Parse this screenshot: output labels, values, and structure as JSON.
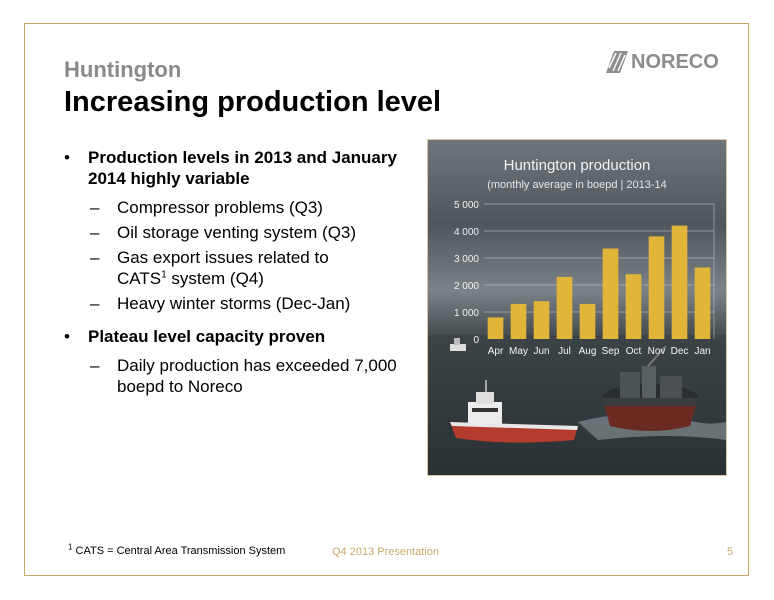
{
  "slide": {
    "subtitle": "Huntington",
    "title": "Increasing production level",
    "logo_text": "NORECO",
    "bullets": [
      {
        "text": "Production levels in 2013 and January 2014 highly variable",
        "subs": [
          "Compressor problems (Q3)",
          "Oil storage venting system (Q3)",
          "Gas export issues related to",
          "Heavy winter storms (Dec-Jan)"
        ],
        "sub_cats_prefix": "CATS",
        "sub_cats_sup": "1",
        "sub_cats_suffix": " system (Q4)"
      },
      {
        "text": "Plateau level capacity proven",
        "subs": [
          "Daily production has exceeded 7,000 boepd to Noreco"
        ]
      }
    ],
    "footnote_sup": "1",
    "footnote": "CATS = Central Area Transmission System",
    "footer_center": "Q4 2013 Presentation",
    "page_number": "5"
  },
  "chart_data": {
    "type": "bar",
    "title": "Huntington production",
    "subtitle": "(monthly average in boepd | 2013-14",
    "categories": [
      "Apr",
      "May",
      "Jun",
      "Jul",
      "Aug",
      "Sep",
      "Oct",
      "Nov",
      "Dec",
      "Jan"
    ],
    "values": [
      800,
      1300,
      1400,
      2300,
      1300,
      3350,
      2400,
      3800,
      4200,
      2650
    ],
    "ylim": [
      0,
      5000
    ],
    "y_ticks": [
      0,
      1000,
      2000,
      3000,
      4000,
      5000
    ],
    "y_tick_labels": [
      "0",
      "1 000",
      "2 000",
      "3 000",
      "4 000",
      "5 000"
    ],
    "grid": true,
    "bar_color": "#e0b53a"
  }
}
